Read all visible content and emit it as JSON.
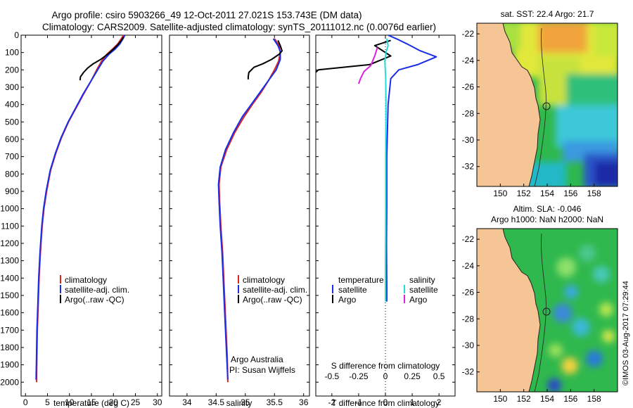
{
  "header": {
    "line1": "Argo profile: csiro 5903266_49 12-Oct-2011 27.021S 153.743E (DM data)",
    "line2": "Climatology: CARS2009. Satellite-adjusted climatology: synTS_20111012.nc (0.0076d earlier)"
  },
  "colors": {
    "climatology": "#dd2222",
    "satellite": "#1a2ee8",
    "argo": "#000000",
    "salinity_sat": "#22dddd",
    "salinity_argo": "#dd22dd",
    "land": "#f5c596"
  },
  "credit": "©IMOS 03-Aug-2017 07:29:44",
  "chart_data": [
    {
      "type": "line",
      "name": "temperature-profile",
      "xlabel": "temperature (deg C)",
      "ylabel": "",
      "xlim": [
        -1,
        31
      ],
      "ylim": [
        0,
        2080
      ],
      "y_inverted": true,
      "xticks": [
        "0",
        "5",
        "10",
        "15",
        "20",
        "25",
        "30"
      ],
      "yticks": [
        "0",
        "100",
        "200",
        "300",
        "400",
        "500",
        "600",
        "700",
        "800",
        "900",
        "1000",
        "1100",
        "1200",
        "1300",
        "1400",
        "1500",
        "1600",
        "1700",
        "1800",
        "1900",
        "2000"
      ],
      "legend": [
        "climatology",
        "satellite-adj. clim.",
        "Argo(..raw -QC)"
      ],
      "series": [
        {
          "name": "climatology",
          "color": "#dd2222",
          "points": [
            [
              22.3,
              0
            ],
            [
              21.8,
              20
            ],
            [
              21,
              50
            ],
            [
              19.8,
              80
            ],
            [
              18.5,
              110
            ],
            [
              17.3,
              150
            ],
            [
              16.2,
              200
            ],
            [
              15,
              260
            ],
            [
              13.2,
              340
            ],
            [
              11.5,
              420
            ],
            [
              9.8,
              500
            ],
            [
              8.2,
              590
            ],
            [
              6.9,
              680
            ],
            [
              5.7,
              780
            ],
            [
              4.8,
              900
            ],
            [
              4.2,
              1000
            ],
            [
              3.8,
              1100
            ],
            [
              3.4,
              1250
            ],
            [
              3.1,
              1400
            ],
            [
              2.9,
              1550
            ],
            [
              2.7,
              1700
            ],
            [
              2.6,
              1850
            ],
            [
              2.5,
              2000
            ]
          ]
        },
        {
          "name": "satellite",
          "color": "#1a2ee8",
          "points": [
            [
              22.6,
              0
            ],
            [
              22.2,
              20
            ],
            [
              21.5,
              50
            ],
            [
              20.4,
              80
            ],
            [
              19,
              110
            ],
            [
              17.6,
              150
            ],
            [
              16.4,
              200
            ],
            [
              15,
              260
            ],
            [
              13.1,
              340
            ],
            [
              11.4,
              420
            ],
            [
              9.7,
              500
            ],
            [
              8.1,
              590
            ],
            [
              6.8,
              680
            ],
            [
              5.6,
              780
            ],
            [
              4.7,
              900
            ],
            [
              4.1,
              1000
            ],
            [
              3.7,
              1100
            ],
            [
              3.3,
              1250
            ],
            [
              3,
              1400
            ],
            [
              2.8,
              1550
            ],
            [
              2.6,
              1700
            ],
            [
              2.5,
              1850
            ],
            [
              2.4,
              1985
            ]
          ]
        },
        {
          "name": "Argo",
          "color": "#000000",
          "points": [
            [
              22.3,
              10
            ],
            [
              21.8,
              30
            ],
            [
              21,
              55
            ],
            [
              20,
              80
            ],
            [
              18.7,
              110
            ],
            [
              17.1,
              140
            ],
            [
              15.4,
              165
            ],
            [
              14.1,
              190
            ],
            [
              13.2,
              215
            ],
            [
              12.5,
              240
            ],
            [
              12.4,
              260
            ]
          ]
        }
      ]
    },
    {
      "type": "line",
      "name": "salinity-profile",
      "xlabel": "salinity",
      "ylabel": "",
      "xlim": [
        33.7,
        36.1
      ],
      "ylim": [
        0,
        2080
      ],
      "y_inverted": true,
      "xticks": [
        "34",
        "34.5",
        "35",
        "35.5",
        "36"
      ],
      "legend": [
        "climatology",
        "satellite-adj. clim.",
        "Argo(..raw -QC)"
      ],
      "annotation": [
        "Argo Australia",
        "PI: Susan Wijffels"
      ],
      "series": [
        {
          "name": "climatology",
          "color": "#dd2222",
          "points": [
            [
              35.5,
              20
            ],
            [
              35.58,
              60
            ],
            [
              35.6,
              100
            ],
            [
              35.57,
              150
            ],
            [
              35.5,
              200
            ],
            [
              35.4,
              260
            ],
            [
              35.27,
              330
            ],
            [
              35.12,
              400
            ],
            [
              34.98,
              470
            ],
            [
              34.82,
              560
            ],
            [
              34.68,
              660
            ],
            [
              34.58,
              760
            ],
            [
              34.55,
              860
            ],
            [
              34.56,
              960
            ],
            [
              34.58,
              1100
            ],
            [
              34.61,
              1250
            ],
            [
              34.63,
              1400
            ],
            [
              34.65,
              1550
            ],
            [
              34.67,
              1700
            ],
            [
              34.69,
              1850
            ],
            [
              34.7,
              2000
            ]
          ]
        },
        {
          "name": "satellite",
          "color": "#1a2ee8",
          "points": [
            [
              35.48,
              20
            ],
            [
              35.56,
              60
            ],
            [
              35.6,
              95
            ],
            [
              35.6,
              140
            ],
            [
              35.53,
              200
            ],
            [
              35.4,
              260
            ],
            [
              35.25,
              330
            ],
            [
              35.1,
              400
            ],
            [
              34.95,
              470
            ],
            [
              34.8,
              560
            ],
            [
              34.66,
              660
            ],
            [
              34.57,
              760
            ],
            [
              34.54,
              860
            ],
            [
              34.55,
              960
            ],
            [
              34.57,
              1100
            ],
            [
              34.6,
              1250
            ],
            [
              34.62,
              1400
            ],
            [
              34.64,
              1550
            ],
            [
              34.66,
              1700
            ],
            [
              34.68,
              1850
            ],
            [
              34.7,
              1985
            ]
          ]
        },
        {
          "name": "Argo",
          "color": "#000000",
          "points": [
            [
              35.56,
              30
            ],
            [
              35.6,
              60
            ],
            [
              35.63,
              90
            ],
            [
              35.58,
              110
            ],
            [
              35.45,
              140
            ],
            [
              35.3,
              165
            ],
            [
              35.15,
              185
            ],
            [
              35.06,
              215
            ],
            [
              35.05,
              240
            ],
            [
              35.05,
              255
            ]
          ]
        }
      ]
    },
    {
      "type": "line",
      "name": "difference-profile",
      "xlabel": "T difference from climatology",
      "x2label": "S difference from climatology",
      "xlim": [
        -2.6,
        2.6
      ],
      "ylim": [
        0,
        2080
      ],
      "y_inverted": true,
      "xticks": [
        "-2",
        "-1",
        "0",
        "1",
        "2"
      ],
      "x2ticks": [
        "-0.5",
        "-0.25",
        "0",
        "0.25",
        "0.5"
      ],
      "legend_left": {
        "title": "temperature",
        "items": [
          "satellite",
          "Argo"
        ]
      },
      "legend_right": {
        "title": "salinity",
        "items": [
          "satellite",
          "Argo"
        ]
      },
      "series": [
        {
          "name": "temperature satellite",
          "color": "#1a2ee8",
          "points": [
            [
              0.1,
              0
            ],
            [
              0.4,
              20
            ],
            [
              0.8,
              50
            ],
            [
              1.3,
              90
            ],
            [
              1.9,
              125
            ],
            [
              1.2,
              170
            ],
            [
              0.5,
              200
            ],
            [
              0.2,
              250
            ],
            [
              0.1,
              400
            ],
            [
              0.05,
              700
            ],
            [
              0.05,
              1000
            ],
            [
              0.04,
              1200
            ],
            [
              0.05,
              1450
            ],
            [
              0.05,
              1535
            ]
          ]
        },
        {
          "name": "temperature Argo",
          "color": "#000000",
          "points": [
            [
              0.2,
              30
            ],
            [
              -0.4,
              60
            ],
            [
              -0.1,
              90
            ],
            [
              0.2,
              120
            ],
            [
              -0.6,
              170
            ],
            [
              -2.5,
              200
            ],
            [
              -2.65,
              220
            ]
          ]
        },
        {
          "name": "salinity satellite",
          "color": "#22dddd",
          "points": [
            [
              0.05,
              20
            ],
            [
              0.1,
              60
            ],
            [
              0.02,
              100
            ],
            [
              -0.02,
              150
            ],
            [
              0.01,
              250
            ],
            [
              0.02,
              400
            ],
            [
              0.01,
              700
            ],
            [
              0.01,
              1000
            ],
            [
              0.0,
              1300
            ],
            [
              0.0,
              1535
            ]
          ]
        },
        {
          "name": "salinity Argo",
          "color": "#dd22dd",
          "points": [
            [
              -0.3,
              70
            ],
            [
              -0.4,
              120
            ],
            [
              -0.55,
              175
            ],
            [
              -0.8,
              210
            ],
            [
              -0.93,
              250
            ],
            [
              -1.0,
              280
            ]
          ]
        }
      ]
    },
    {
      "type": "heatmap",
      "name": "sst-map",
      "title": "sat. SST: 22.4  Argo: 21.7",
      "xticks": [
        "150",
        "152",
        "154",
        "156",
        "158"
      ],
      "yticks": [
        "-22",
        "-24",
        "-26",
        "-28",
        "-30",
        "-32"
      ],
      "xlim": [
        148,
        160
      ],
      "ylim": [
        -33.5,
        -21.2
      ]
    },
    {
      "type": "heatmap",
      "name": "sla-map",
      "title_line1": "Altim. SLA: -0.046",
      "title_line2": "Argo h1000: NaN  h2000: NaN",
      "xticks": [
        "150",
        "152",
        "154",
        "156",
        "158"
      ],
      "yticks": [
        "-22",
        "-24",
        "-26",
        "-28",
        "-30",
        "-32"
      ],
      "xlim": [
        148,
        160
      ],
      "ylim": [
        -33.5,
        -21.2
      ]
    }
  ]
}
